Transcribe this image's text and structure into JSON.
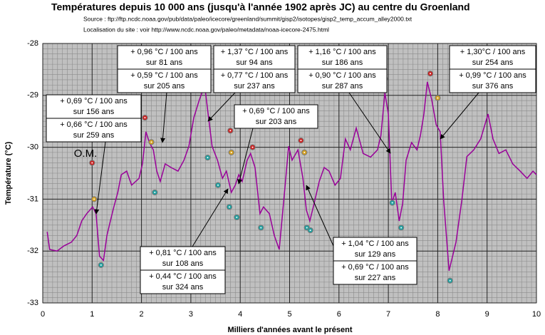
{
  "chart_data": {
    "type": "line",
    "title": "Températures depuis 10 000 ans (jusqu'à l'année 1902 après JC) au centre du Groenland",
    "source": "Source :  ftp://ftp.ncdc.noaa.gov/pub/data/paleo/icecore/greenland/summit/gisp2/isotopes/gisp2_temp_accum_alley2000.txt",
    "location": "Localisation du site : voir  http://www.ncdc.noaa.gov/paleo/metadata/noaa-icecore-2475.html",
    "xlabel": "Milliers d'années avant le présent",
    "ylabel": "Température (°C)",
    "xlim": [
      0,
      10
    ],
    "ylim": [
      -33,
      -28
    ],
    "xticks": [
      0,
      1,
      2,
      3,
      4,
      5,
      6,
      7,
      8,
      9,
      10
    ],
    "yticks": [
      -28,
      -29,
      -30,
      -31,
      -32,
      -33
    ],
    "grid": true,
    "x": [
      0.09,
      0.14,
      0.29,
      0.43,
      0.58,
      0.69,
      0.79,
      0.89,
      1.01,
      1.08,
      1.15,
      1.23,
      1.3,
      1.37,
      1.44,
      1.52,
      1.59,
      1.7,
      1.8,
      1.95,
      2.02,
      2.09,
      2.16,
      2.24,
      2.31,
      2.38,
      2.48,
      2.6,
      2.74,
      2.86,
      2.96,
      3.06,
      3.17,
      3.28,
      3.35,
      3.43,
      3.54,
      3.64,
      3.72,
      3.82,
      3.9,
      3.97,
      4.04,
      4.14,
      4.21,
      4.3,
      4.4,
      4.47,
      4.59,
      4.69,
      4.79,
      4.91,
      4.98,
      5.05,
      5.17,
      5.27,
      5.34,
      5.41,
      5.48,
      5.6,
      5.7,
      5.8,
      5.92,
      6.03,
      6.13,
      6.23,
      6.35,
      6.49,
      6.64,
      6.78,
      6.85,
      6.93,
      7.0,
      7.07,
      7.14,
      7.22,
      7.29,
      7.36,
      7.47,
      7.58,
      7.65,
      7.72,
      7.79,
      7.88,
      7.97,
      8.05,
      8.12,
      8.23,
      8.37,
      8.49,
      8.59,
      8.73,
      8.87,
      9.02,
      9.12,
      9.24,
      9.38,
      9.52,
      9.67,
      9.81,
      9.93,
      10.0
    ],
    "series": [
      {
        "color": "#990099",
        "values": [
          -31.63,
          -31.97,
          -32.0,
          -31.9,
          -31.83,
          -31.7,
          -31.42,
          -31.28,
          -31.15,
          -31.28,
          -32.1,
          -32.18,
          -31.7,
          -31.42,
          -31.15,
          -30.87,
          -30.53,
          -30.46,
          -30.73,
          -30.6,
          -30.32,
          -29.7,
          -29.91,
          -30.05,
          -30.46,
          -30.66,
          -30.32,
          -30.39,
          -30.46,
          -30.25,
          -29.98,
          -29.43,
          -29.09,
          -28.81,
          -29.36,
          -29.98,
          -30.25,
          -30.6,
          -30.46,
          -30.87,
          -30.73,
          -30.53,
          -30.66,
          -30.25,
          -30.12,
          -30.39,
          -31.28,
          -31.15,
          -31.28,
          -31.7,
          -31.97,
          -30.73,
          -29.98,
          -30.25,
          -30.05,
          -30.6,
          -31.21,
          -31.42,
          -31.15,
          -30.66,
          -30.39,
          -30.46,
          -30.73,
          -30.6,
          -29.84,
          -30.05,
          -29.63,
          -30.12,
          -30.19,
          -30.05,
          -29.77,
          -28.95,
          -29.36,
          -31.08,
          -30.87,
          -31.42,
          -31.08,
          -30.25,
          -29.91,
          -30.05,
          -29.77,
          -29.36,
          -28.74,
          -29.09,
          -29.57,
          -29.7,
          -31.01,
          -32.38,
          -31.83,
          -31.01,
          -30.18,
          -30.05,
          -29.84,
          -29.36,
          -29.84,
          -30.12,
          -30.05,
          -30.32,
          -30.46,
          -30.6,
          -30.46,
          -30.53
        ]
      }
    ],
    "markers": [
      {
        "color": "#cc2222",
        "x": [
          1.0,
          2.07,
          3.25,
          3.8,
          4.25,
          5.23,
          6.93,
          7.85
        ],
        "y": [
          -30.3,
          -29.43,
          -28.63,
          -29.68,
          -30.0,
          -29.87,
          -28.68,
          -28.58
        ]
      },
      {
        "color": "#d4a020",
        "x": [
          1.04,
          2.2,
          3.82,
          5.3,
          8.0
        ],
        "y": [
          -31.0,
          -29.9,
          -30.1,
          -30.1,
          -29.05
        ]
      },
      {
        "color": "#20a0a0",
        "x": [
          1.18,
          2.27,
          3.34,
          3.55,
          3.78,
          3.93,
          4.42,
          5.35,
          5.42,
          7.08,
          7.26,
          8.25
        ],
        "y": [
          -32.27,
          -30.87,
          -30.2,
          -30.73,
          -31.15,
          -31.35,
          -31.55,
          -31.55,
          -31.6,
          -31.07,
          -31.55,
          -32.57
        ]
      }
    ],
    "om_label": "O.M.",
    "annotations": [
      {
        "boxes": [
          [
            "+ 0,69 °C / 100 ans",
            "sur 156 ans"
          ],
          [
            "+ 0,66 °C / 100 ans",
            "sur 259 ans"
          ]
        ]
      },
      {
        "boxes": [
          [
            "+ 0,96 °C / 100 ans",
            "sur 81 ans"
          ],
          [
            "+ 0,59 °C / 100 ans",
            "sur 205 ans"
          ]
        ]
      },
      {
        "boxes": [
          [
            "+ 1,37 °C / 100 ans",
            "sur 94 ans"
          ],
          [
            "+ 0,77 °C / 100 ans",
            "sur 237 ans"
          ]
        ]
      },
      {
        "boxes": [
          [
            "+ 0,69 °C / 100 ans",
            "sur 203 ans"
          ]
        ]
      },
      {
        "boxes": [
          [
            "+ 1,16 °C / 100 ans",
            "sur 186 ans"
          ],
          [
            "+ 0,90 °C / 100 ans",
            "sur 287 ans"
          ]
        ]
      },
      {
        "boxes": [
          [
            "+ 1,30°C / 100 ans",
            "sur 254 ans"
          ],
          [
            "+ 0,99 °C / 100 ans",
            "sur 376 ans"
          ]
        ]
      },
      {
        "boxes": [
          [
            "+ 0,81 °C / 100 ans",
            "sur 108 ans"
          ],
          [
            "+ 0,44 °C / 100 ans",
            "sur 324 ans"
          ]
        ]
      },
      {
        "boxes": [
          [
            "+ 1,04 °C / 100 ans",
            "sur 129 ans"
          ],
          [
            "+ 0,69 °C / 100 ans",
            "sur 227 ans"
          ]
        ]
      }
    ]
  }
}
